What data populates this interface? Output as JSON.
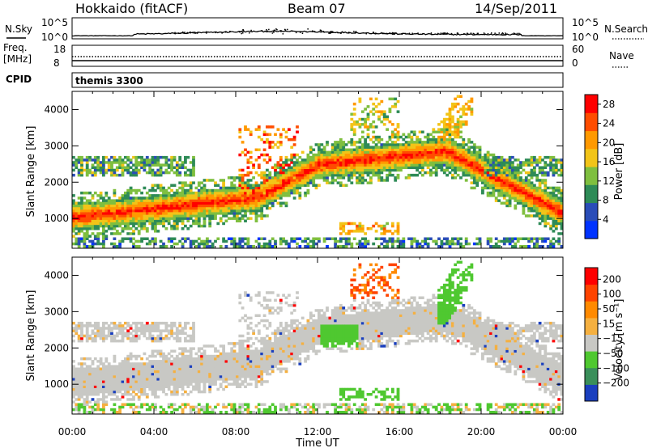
{
  "header": {
    "station": "Hokkaido (fitACF)",
    "beam": "Beam 07",
    "date": "14/Sep/2011"
  },
  "panels": {
    "nsky": {
      "left_label": "N.Sky",
      "right_label": "N.Search",
      "ticks_left": [
        "10^5",
        "10^0"
      ],
      "ticks_right": [
        "10^5",
        "10^0"
      ]
    },
    "freq": {
      "left_label_1": "Freq.",
      "left_label_2": "[MHz]",
      "right_label": "Nave",
      "ticks_left": [
        "18",
        "8"
      ],
      "ticks_right": [
        "60",
        "0"
      ]
    },
    "cpid": {
      "left_label": "CPID",
      "program": "themis 3300"
    }
  },
  "chart_data": [
    {
      "type": "heatmap",
      "name": "power",
      "ylabel": "Slant Range [km]",
      "xlabel": "Time UT",
      "x_ticks": [
        "00:00",
        "04:00",
        "08:00",
        "12:00",
        "16:00",
        "20:00",
        "00:00"
      ],
      "x_range_hours": [
        0,
        24
      ],
      "ylim": [
        180,
        4500
      ],
      "y_ticks": [
        1000,
        2000,
        3000,
        4000
      ],
      "colorbar": {
        "label": "Power [dB]",
        "ticks": [
          4,
          8,
          12,
          16,
          20,
          24,
          28
        ],
        "range": [
          0,
          30
        ],
        "colors": [
          "#0033ff",
          "#2a4db8",
          "#2e8b57",
          "#7fbf3f",
          "#f2c418",
          "#ff9900",
          "#ff4d00",
          "#ff0000"
        ]
      },
      "features": [
        {
          "band": "main_echo",
          "hours": [
            0,
            24
          ],
          "range_km": [
            800,
            2900
          ]
        },
        {
          "band": "upper_echo",
          "hours": [
            8,
            19
          ],
          "range_km": [
            3000,
            4300
          ]
        },
        {
          "band": "near_range_clutter",
          "hours": [
            0,
            24
          ],
          "range_km": [
            200,
            600
          ]
        }
      ]
    },
    {
      "type": "heatmap",
      "name": "velocity",
      "ylabel": "Slant Range [km]",
      "xlabel": "Time UT",
      "x_ticks": [
        "00:00",
        "04:00",
        "08:00",
        "12:00",
        "16:00",
        "20:00",
        "00:00"
      ],
      "x_range_hours": [
        0,
        24
      ],
      "ylim": [
        180,
        4500
      ],
      "y_ticks": [
        1000,
        2000,
        3000,
        4000
      ],
      "colorbar": {
        "label": "Velocity [m s⁻¹]",
        "ticks": [
          200,
          100,
          50,
          15,
          -15,
          -50,
          -100,
          -200
        ],
        "colors": [
          "#1a3fbf",
          "#3a8f5a",
          "#4fc830",
          "#c8c8c4",
          "#f5b040",
          "#ff8a00",
          "#ff4400",
          "#ff0000"
        ]
      }
    }
  ]
}
